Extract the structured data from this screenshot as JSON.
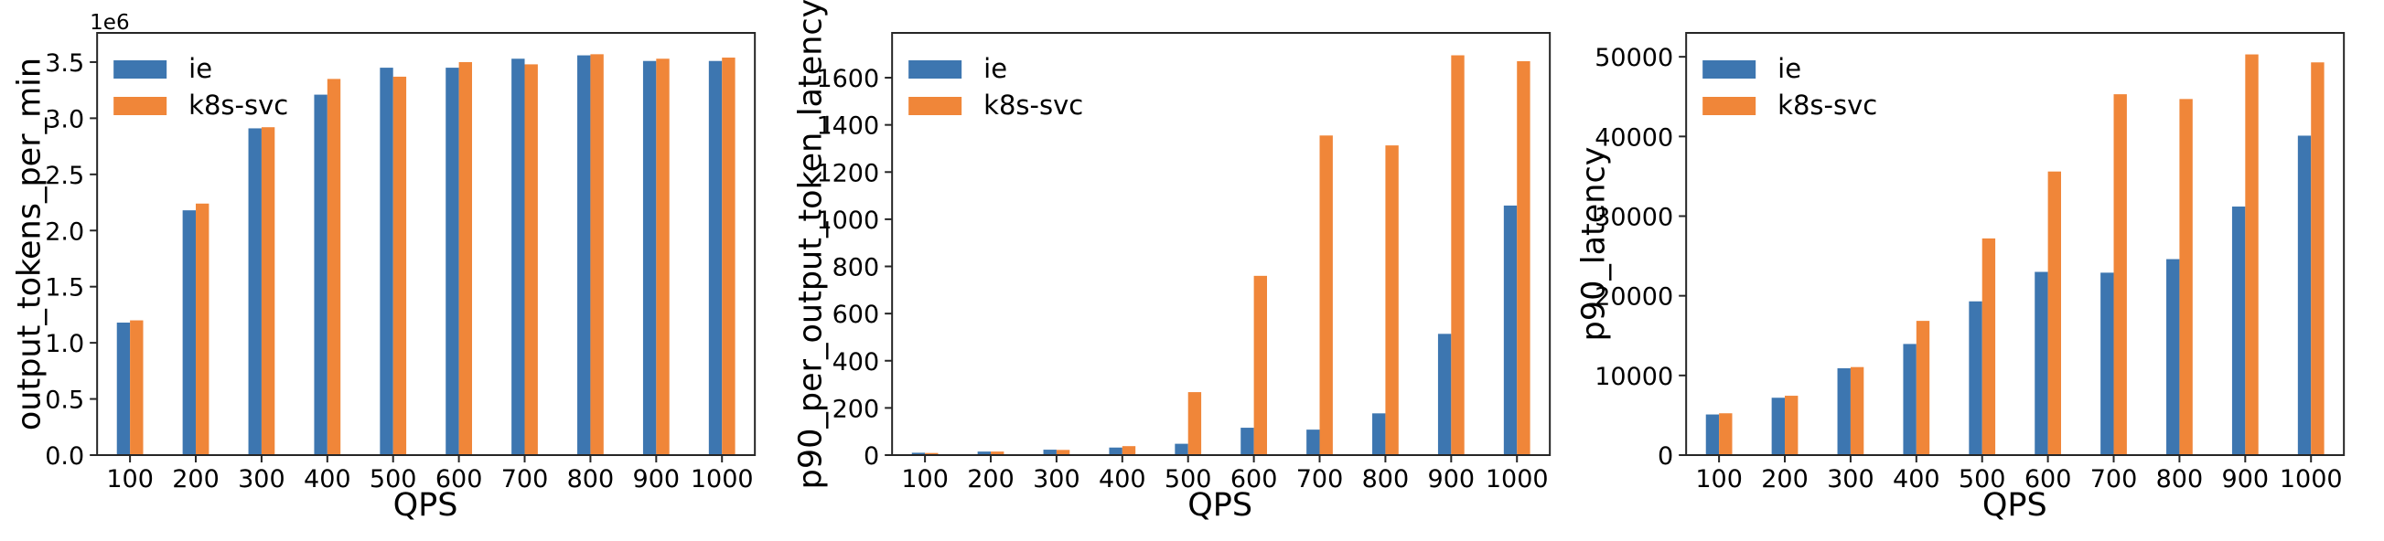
{
  "colors": {
    "ie": "#3d76b0",
    "k8s-svc": "#f08639",
    "axis": "#262626",
    "text": "#000000"
  },
  "chart_data": [
    {
      "type": "bar",
      "title": "",
      "xlabel": "QPS",
      "ylabel": "output_tokens_per_min",
      "offset_text": "1e6",
      "categories": [
        "100",
        "200",
        "300",
        "400",
        "500",
        "600",
        "700",
        "800",
        "900",
        "1000"
      ],
      "series": [
        {
          "name": "ie",
          "values": [
            1180000,
            2180000,
            2910000,
            3210000,
            3450000,
            3450000,
            3530000,
            3560000,
            3510000,
            3510000
          ]
        },
        {
          "name": "k8s-svc",
          "values": [
            1200000,
            2240000,
            2920000,
            3350000,
            3370000,
            3500000,
            3480000,
            3570000,
            3530000,
            3540000
          ]
        }
      ],
      "ylim": [
        0,
        3760000
      ],
      "yticks": {
        "values": [
          0,
          500000,
          1000000,
          1500000,
          2000000,
          2500000,
          3000000,
          3500000
        ],
        "labels": [
          "0.0",
          "0.5",
          "1.0",
          "1.5",
          "2.0",
          "2.5",
          "3.0",
          "3.5"
        ]
      },
      "legend": {
        "entries": [
          "ie",
          "k8s-svc"
        ],
        "position": "upper-left"
      },
      "grid": false
    },
    {
      "type": "bar",
      "title": "",
      "xlabel": "QPS",
      "ylabel": "p90_per_output_token_latency",
      "offset_text": "",
      "categories": [
        "100",
        "200",
        "300",
        "400",
        "500",
        "600",
        "700",
        "800",
        "900",
        "1000"
      ],
      "series": [
        {
          "name": "ie",
          "values": [
            10,
            15,
            23,
            32,
            48,
            116,
            108,
            177,
            514,
            1058
          ]
        },
        {
          "name": "k8s-svc",
          "values": [
            9,
            15,
            22,
            38,
            267,
            760,
            1355,
            1313,
            1695,
            1670
          ]
        }
      ],
      "ylim": [
        0,
        1790
      ],
      "yticks": {
        "values": [
          0,
          200,
          400,
          600,
          800,
          1000,
          1200,
          1400,
          1600
        ],
        "labels": [
          "0",
          "200",
          "400",
          "600",
          "800",
          "1000",
          "1200",
          "1400",
          "1600"
        ]
      },
      "legend": {
        "entries": [
          "ie",
          "k8s-svc"
        ],
        "position": "upper-left"
      },
      "grid": false
    },
    {
      "type": "bar",
      "title": "",
      "xlabel": "QPS",
      "ylabel": "p90_latency",
      "offset_text": "",
      "categories": [
        "100",
        "200",
        "300",
        "400",
        "500",
        "600",
        "700",
        "800",
        "900",
        "1000"
      ],
      "series": [
        {
          "name": "ie",
          "values": [
            5100,
            7200,
            10900,
            13950,
            19300,
            23000,
            22900,
            24600,
            31200,
            40100
          ]
        },
        {
          "name": "k8s-svc",
          "values": [
            5250,
            7450,
            11050,
            16850,
            27200,
            35600,
            45300,
            44700,
            50300,
            49300
          ]
        }
      ],
      "ylim": [
        0,
        53000
      ],
      "yticks": {
        "values": [
          0,
          10000,
          20000,
          30000,
          40000,
          50000
        ],
        "labels": [
          "0",
          "10000",
          "20000",
          "30000",
          "40000",
          "50000"
        ]
      },
      "legend": {
        "entries": [
          "ie",
          "k8s-svc"
        ],
        "position": "upper-left"
      },
      "grid": false
    }
  ]
}
